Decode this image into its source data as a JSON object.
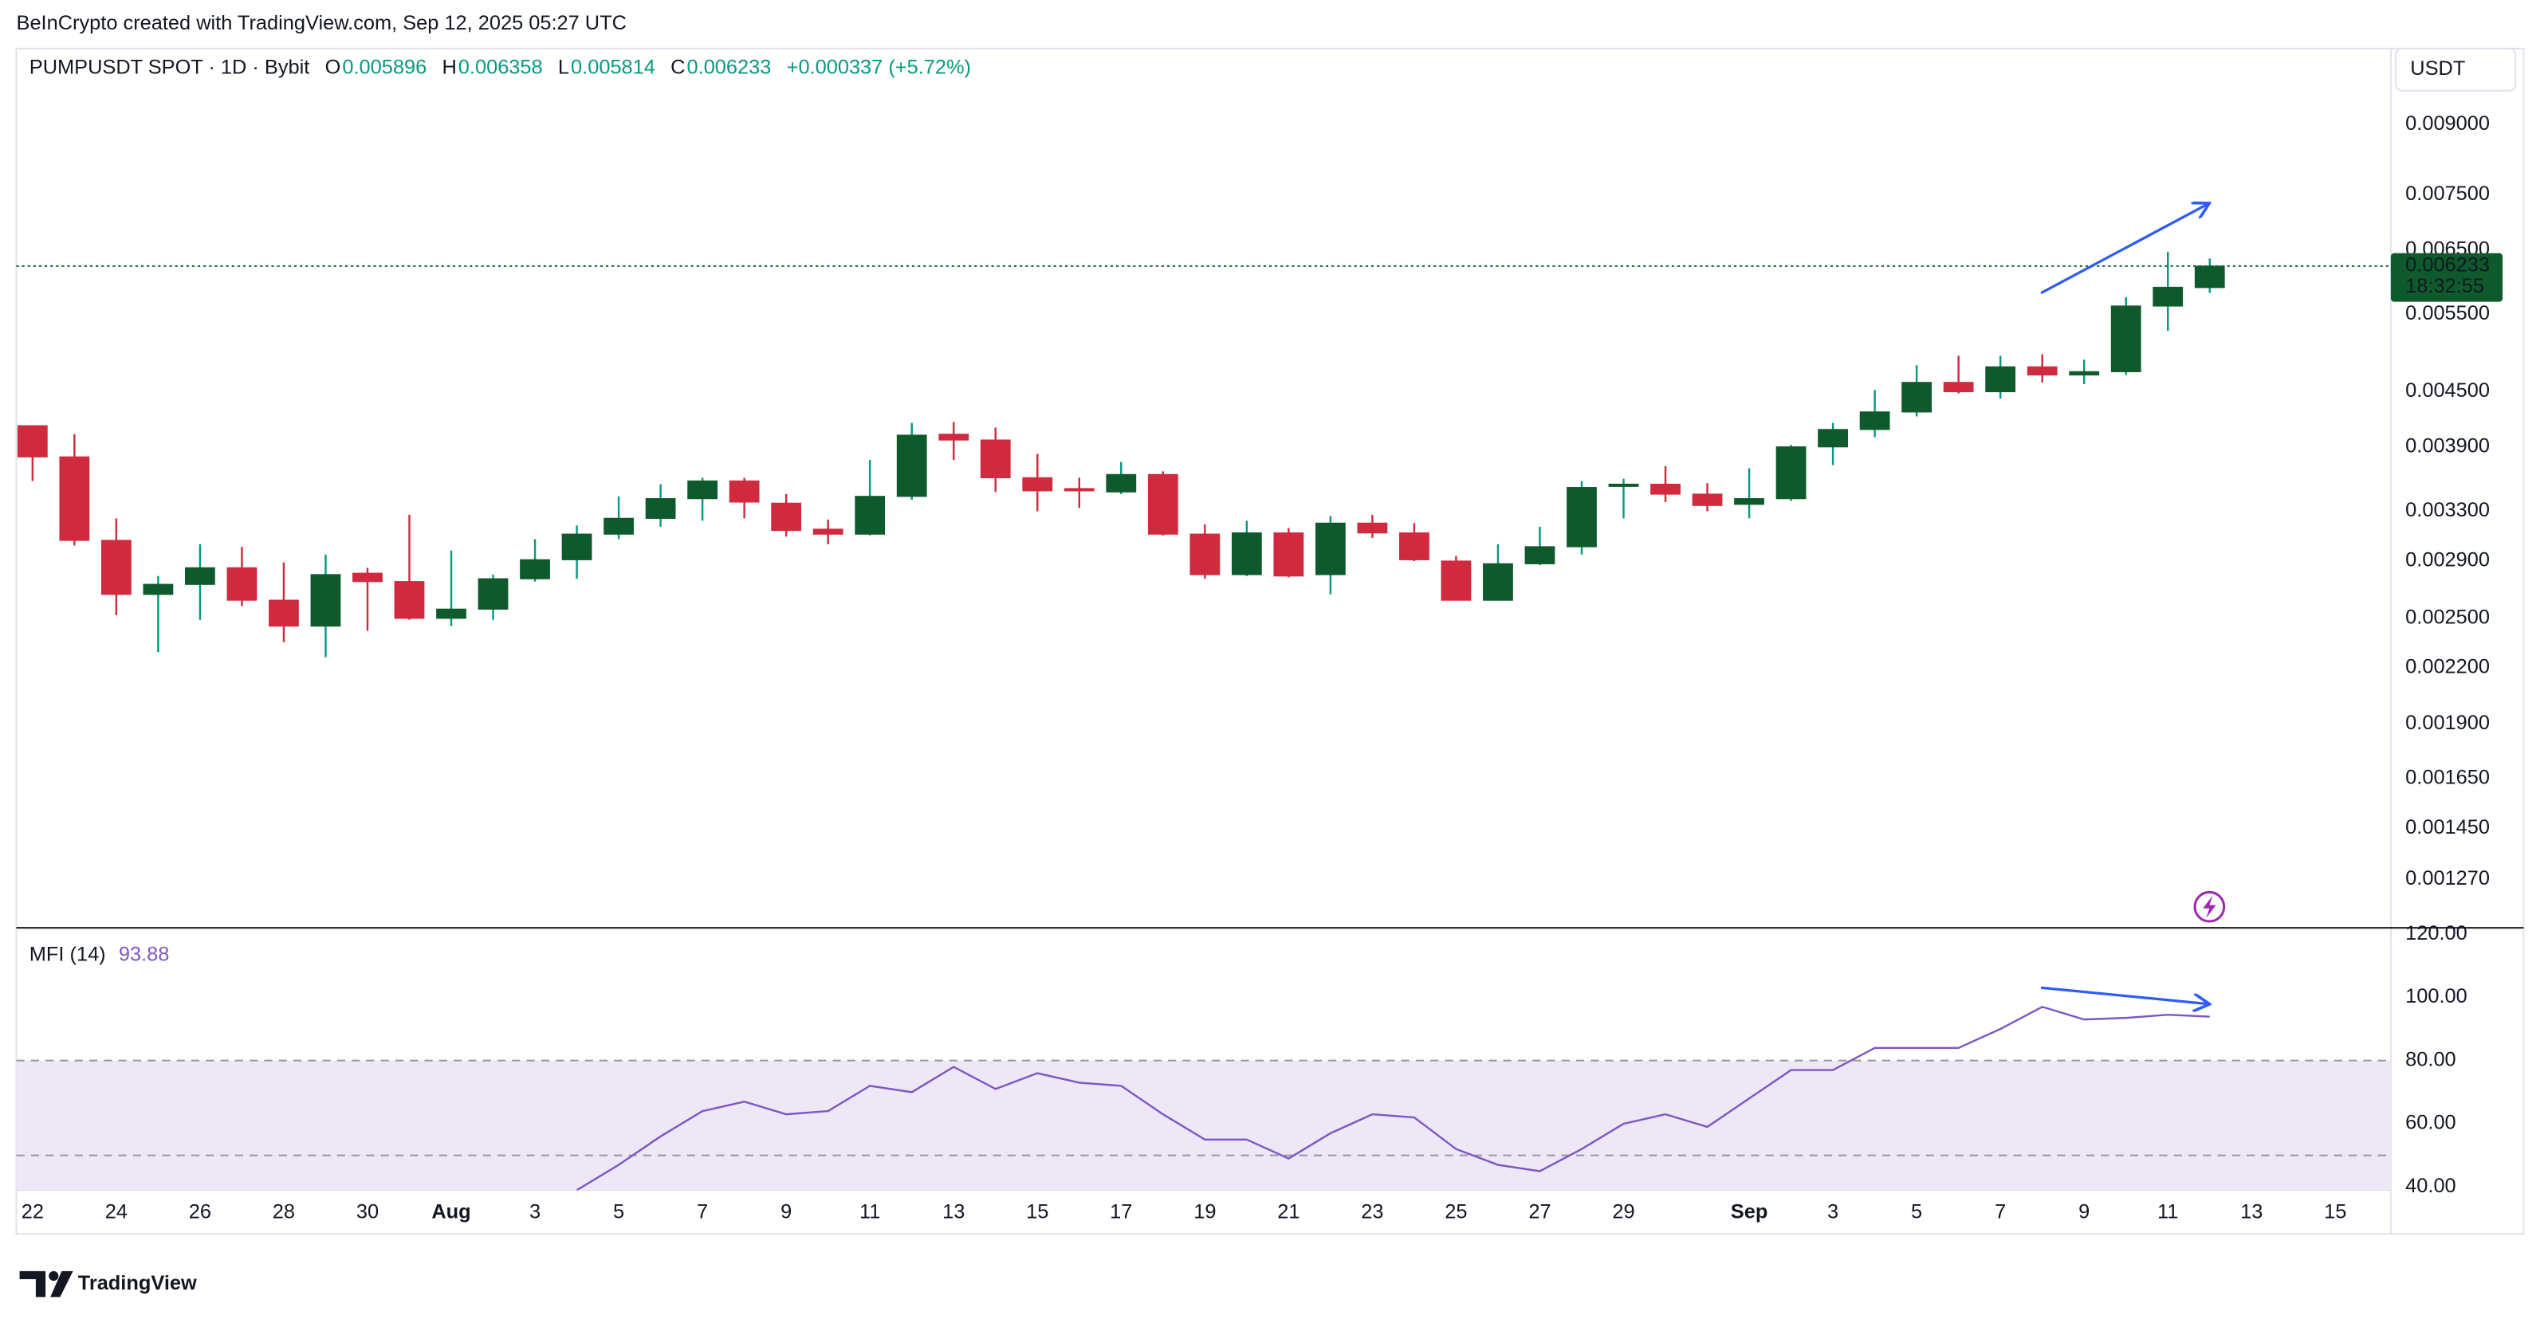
{
  "header": {
    "attribution": "BeInCrypto created with TradingView.com, Sep 12, 2025 05:27 UTC",
    "symbol": "PUMPUSDT SPOT · 1D · Bybit",
    "ohlc_labels": [
      "O",
      "H",
      "L",
      "C"
    ],
    "change": "+0.000337 (+5.72%)",
    "currency": "USDT",
    "countdown": "18:32:55",
    "logo": "TradingView"
  },
  "chart_data": [
    {
      "type": "candlestick",
      "categories": [
        "22",
        null,
        "24",
        null,
        "26",
        null,
        "28",
        null,
        "30",
        null,
        "Aug",
        null,
        "3",
        null,
        "5",
        null,
        "7",
        null,
        "9",
        null,
        "11",
        null,
        "13",
        null,
        "15",
        null,
        "17",
        null,
        "19",
        null,
        "21",
        null,
        "23",
        null,
        "25",
        null,
        "27",
        null,
        "29",
        null,
        null,
        "Sep",
        null,
        "3",
        null,
        "5",
        null,
        "7",
        null,
        "9",
        null,
        "11",
        null,
        "13",
        null,
        "15"
      ],
      "open": [
        0.00412,
        0.0038,
        0.00306,
        0.00266,
        0.00273,
        0.00285,
        0.00262,
        0.00245,
        0.00281,
        0.00275,
        0.0025,
        0.00256,
        0.00277,
        0.00291,
        0.00311,
        0.00324,
        0.00341,
        0.00357,
        0.00337,
        0.00315,
        0.00311,
        0.00343,
        0.00403,
        0.00397,
        0.0036,
        0.0035,
        0.00347,
        0.00363,
        0.00311,
        0.0028,
        0.00312,
        0.0028,
        0.0032,
        0.00312,
        0.0029,
        0.00262,
        0.00288,
        0.00301,
        0.00352,
        0.00354,
        0.00345,
        0.00336,
        0.00341,
        0.0039,
        0.00408,
        0.00427,
        0.00461,
        0.0045,
        0.0048,
        0.0047,
        0.00474,
        0.00562,
        0.005896,
        null,
        null,
        null
      ],
      "high": [
        0.00412,
        0.00403,
        0.00324,
        0.00279,
        0.00303,
        0.00301,
        0.00289,
        0.00295,
        0.00285,
        0.00327,
        0.00298,
        0.0028,
        0.00307,
        0.00318,
        0.00343,
        0.00354,
        0.0036,
        0.0036,
        0.00345,
        0.00323,
        0.00377,
        0.00415,
        0.00416,
        0.0041,
        0.00383,
        0.0036,
        0.00375,
        0.00366,
        0.00319,
        0.00322,
        0.00316,
        0.00326,
        0.00327,
        0.0032,
        0.00294,
        0.00303,
        0.00317,
        0.00357,
        0.00359,
        0.00371,
        0.00355,
        0.00369,
        0.00392,
        0.00415,
        0.00452,
        0.00482,
        0.00494,
        0.00494,
        0.00496,
        0.00489,
        0.00575,
        0.00647,
        0.006358,
        null,
        null,
        null
      ],
      "low": [
        0.00357,
        0.00302,
        0.00252,
        0.00229,
        0.00249,
        0.00258,
        0.00235,
        0.00226,
        0.00242,
        0.00249,
        0.00245,
        0.00249,
        0.00275,
        0.00277,
        0.00307,
        0.00317,
        0.00322,
        0.00324,
        0.00309,
        0.00303,
        0.0031,
        0.0034,
        0.00377,
        0.00347,
        0.0033,
        0.00333,
        0.00345,
        0.0031,
        0.00277,
        0.00279,
        0.00278,
        0.00266,
        0.00308,
        0.0029,
        0.00262,
        0.00262,
        0.00287,
        0.00295,
        0.00324,
        0.00338,
        0.0033,
        0.00324,
        0.00339,
        0.00372,
        0.004,
        0.00422,
        0.00448,
        0.00442,
        0.00461,
        0.00459,
        0.0047,
        0.00527,
        0.005814,
        null,
        null,
        null
      ],
      "close": [
        0.0038,
        0.00306,
        0.00266,
        0.00273,
        0.00285,
        0.00262,
        0.00245,
        0.0028,
        0.00275,
        0.0025,
        0.00256,
        0.00277,
        0.00291,
        0.00311,
        0.00324,
        0.00341,
        0.00357,
        0.00338,
        0.00314,
        0.00311,
        0.00343,
        0.00402,
        0.00397,
        0.0036,
        0.00348,
        0.00348,
        0.00363,
        0.00311,
        0.0028,
        0.00312,
        0.00279,
        0.0032,
        0.00312,
        0.00291,
        0.00262,
        0.00288,
        0.00301,
        0.00351,
        0.00354,
        0.00345,
        0.00335,
        0.00341,
        0.0039,
        0.00408,
        0.00427,
        0.00461,
        0.0045,
        0.0048,
        0.0047,
        0.00474,
        0.00562,
        0.0059,
        0.006233,
        null,
        null,
        null
      ],
      "up_color": "#0f5a2c",
      "down_color": "#cf2a3e",
      "value_color": "#089981",
      "ylim": [
        0.00112,
        0.01096
      ],
      "log_scale": true,
      "grid": false,
      "yticks": [
        {
          "value": 0.009,
          "label": "0.009000"
        },
        {
          "value": 0.0075,
          "label": "0.007500"
        },
        {
          "value": 0.0065,
          "label": "0.006500"
        },
        {
          "value": 0.0055,
          "label": "0.005500"
        },
        {
          "value": 0.0045,
          "label": "0.004500"
        },
        {
          "value": 0.0039,
          "label": "0.003900"
        },
        {
          "value": 0.0033,
          "label": "0.003300"
        },
        {
          "value": 0.0029,
          "label": "0.002900"
        },
        {
          "value": 0.0025,
          "label": "0.002500"
        },
        {
          "value": 0.0022,
          "label": "0.002200"
        },
        {
          "value": 0.0019,
          "label": "0.001900"
        },
        {
          "value": 0.00165,
          "label": "0.001650"
        },
        {
          "value": 0.00145,
          "label": "0.001450"
        },
        {
          "value": 0.00127,
          "label": "0.001270"
        }
      ]
    },
    {
      "type": "line",
      "name": "MFI (14)",
      "color": "#7e57c2",
      "values": [
        null,
        null,
        null,
        null,
        null,
        null,
        null,
        null,
        null,
        null,
        null,
        null,
        null,
        39,
        47,
        56,
        64,
        67,
        63,
        64,
        72,
        70,
        78,
        71,
        76,
        73,
        72,
        63,
        55,
        55,
        49,
        57,
        63,
        62,
        52,
        47,
        45,
        52,
        60,
        63,
        59,
        68,
        77,
        77,
        84,
        84,
        84,
        90,
        97,
        93,
        93.5,
        94.5,
        93.88,
        null,
        null,
        null
      ],
      "ylim": [
        39,
        122
      ],
      "yticks": [
        {
          "value": 120,
          "label": "120.00"
        },
        {
          "value": 100,
          "label": "100.00"
        },
        {
          "value": 80,
          "label": "80.00"
        },
        {
          "value": 60,
          "label": "60.00"
        },
        {
          "value": 40,
          "label": "40.00"
        }
      ],
      "bands": [
        80,
        50
      ],
      "band_fill": "#ede7f6"
    }
  ]
}
